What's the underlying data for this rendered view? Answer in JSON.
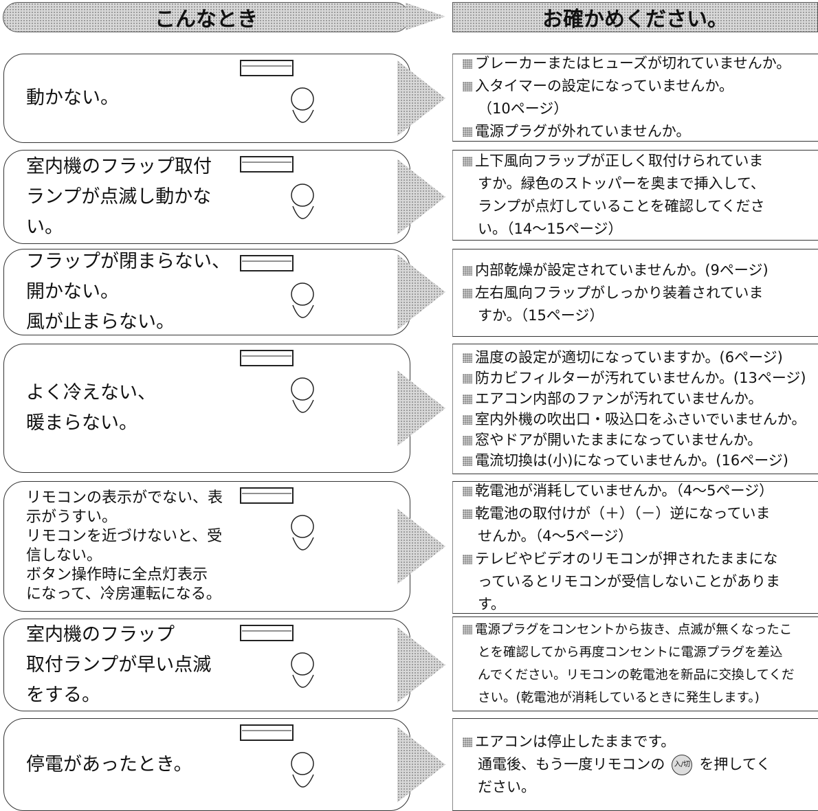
{
  "header": {
    "left": "こんなとき",
    "right": "お確かめください。"
  },
  "rows": [
    {
      "symptom": [
        "動かない。"
      ],
      "checks": [
        [
          "ブレーカーまたはヒューズが切れていませんか。"
        ],
        [
          "入タイマーの設定になっていませんか。",
          "（10ページ）"
        ],
        [
          "電源プラグが外れていませんか。"
        ]
      ]
    },
    {
      "symptom": [
        "室内機のフラップ取付",
        "ランプが点滅し動かな",
        "い。"
      ],
      "checks": [
        [
          "上下風向フラップが正しく取付けられていま",
          "すか。緑色のストッパーを奥まで挿入して、",
          "ランプが点灯していることを確認してくださ",
          "い。（14〜15ページ）"
        ]
      ]
    },
    {
      "symptom": [
        "フラップが閉まらない、",
        "開かない。",
        "風が止まらない。"
      ],
      "checks": [
        [
          "内部乾燥が設定されていませんか。(9ページ)"
        ],
        [
          "左右風向フラップがしっかり装着されていま",
          "すか。（15ページ）"
        ]
      ]
    },
    {
      "symptom": [
        "よく冷えない、",
        "暖まらない。"
      ],
      "checks": [
        [
          "温度の設定が適切になっていますか。(6ページ)"
        ],
        [
          "防カビフィルターが汚れていませんか。(13ページ)"
        ],
        [
          "エアコン内部のファンが汚れていませんか。"
        ],
        [
          "室内外機の吹出口・吸込口をふさいでいませんか。"
        ],
        [
          "窓やドアが開いたままになっていませんか。"
        ],
        [
          "電流切換は(小)になっていませんか。(16ページ)"
        ]
      ]
    },
    {
      "symptom": [
        "リモコンの表示がでない、表",
        "示がうすい。",
        "リモコンを近づけないと、受",
        "信しない。",
        "ボタン操作時に全点灯表示",
        "になって、冷房運転になる。"
      ],
      "checks": [
        [
          "乾電池が消耗していませんか。（4〜5ページ）"
        ],
        [
          "乾電池の取付けが（＋）（－）逆になっていま",
          "せんか。（4〜5ページ）"
        ],
        [
          "テレビやビデオのリモコンが押されたままにな",
          "っているとリモコンが受信しないことがありま",
          "す。"
        ]
      ]
    },
    {
      "symptom": [
        "室内機のフラップ",
        "取付ランプが早い点滅",
        "をする。"
      ],
      "checks": [
        [
          "電源プラグをコンセントから抜き、点滅が無くなったこ",
          "とを確認してから再度コンセントに電源プラグを差込",
          "んでください。リモコンの乾電池を新品に交換してくだ",
          "さい。(乾電池が消耗しているときに発生します。)"
        ]
      ]
    },
    {
      "symptom": [
        "停電があったとき。"
      ],
      "checks": [
        [
          "エアコンは停止したままです。",
          [
            "通電後、もう一度リモコンの",
            "入/切",
            "を押してく"
          ],
          "ださい。"
        ]
      ]
    }
  ]
}
